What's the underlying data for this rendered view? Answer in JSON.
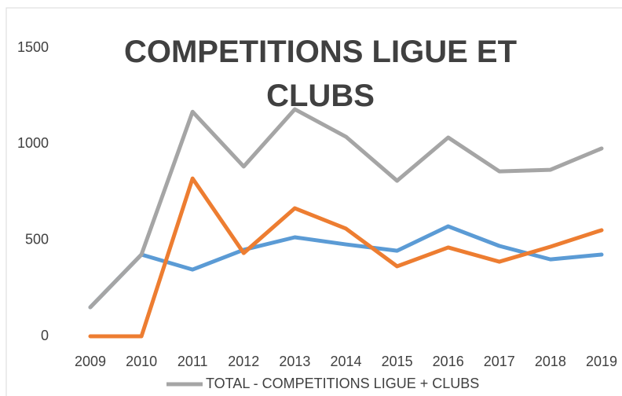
{
  "chart_data": {
    "type": "line",
    "title": "COMPETITIONS LIGUE ET CLUBS",
    "categories": [
      "2009",
      "2010",
      "2011",
      "2012",
      "2013",
      "2014",
      "2015",
      "2016",
      "2017",
      "2018",
      "2019"
    ],
    "series": [
      {
        "color": "#5b9bd5",
        "values": [
          151,
          425,
          347,
          450,
          515,
          478,
          445,
          572,
          470,
          400,
          425
        ]
      },
      {
        "color": "#ed7d31",
        "values": [
          0,
          0,
          821,
          433,
          666,
          560,
          364,
          462,
          388,
          466,
          552
        ]
      },
      {
        "name": "TOTAL - COMPETITIONS LIGUE + CLUBS",
        "color": "#a5a5a5",
        "values": [
          151,
          425,
          1168,
          883,
          1181,
          1038,
          809,
          1034,
          858,
          866,
          977
        ]
      }
    ],
    "ylim": [
      0,
      1500
    ],
    "yticks": [
      0,
      500,
      1000,
      1500
    ],
    "grid": false
  }
}
